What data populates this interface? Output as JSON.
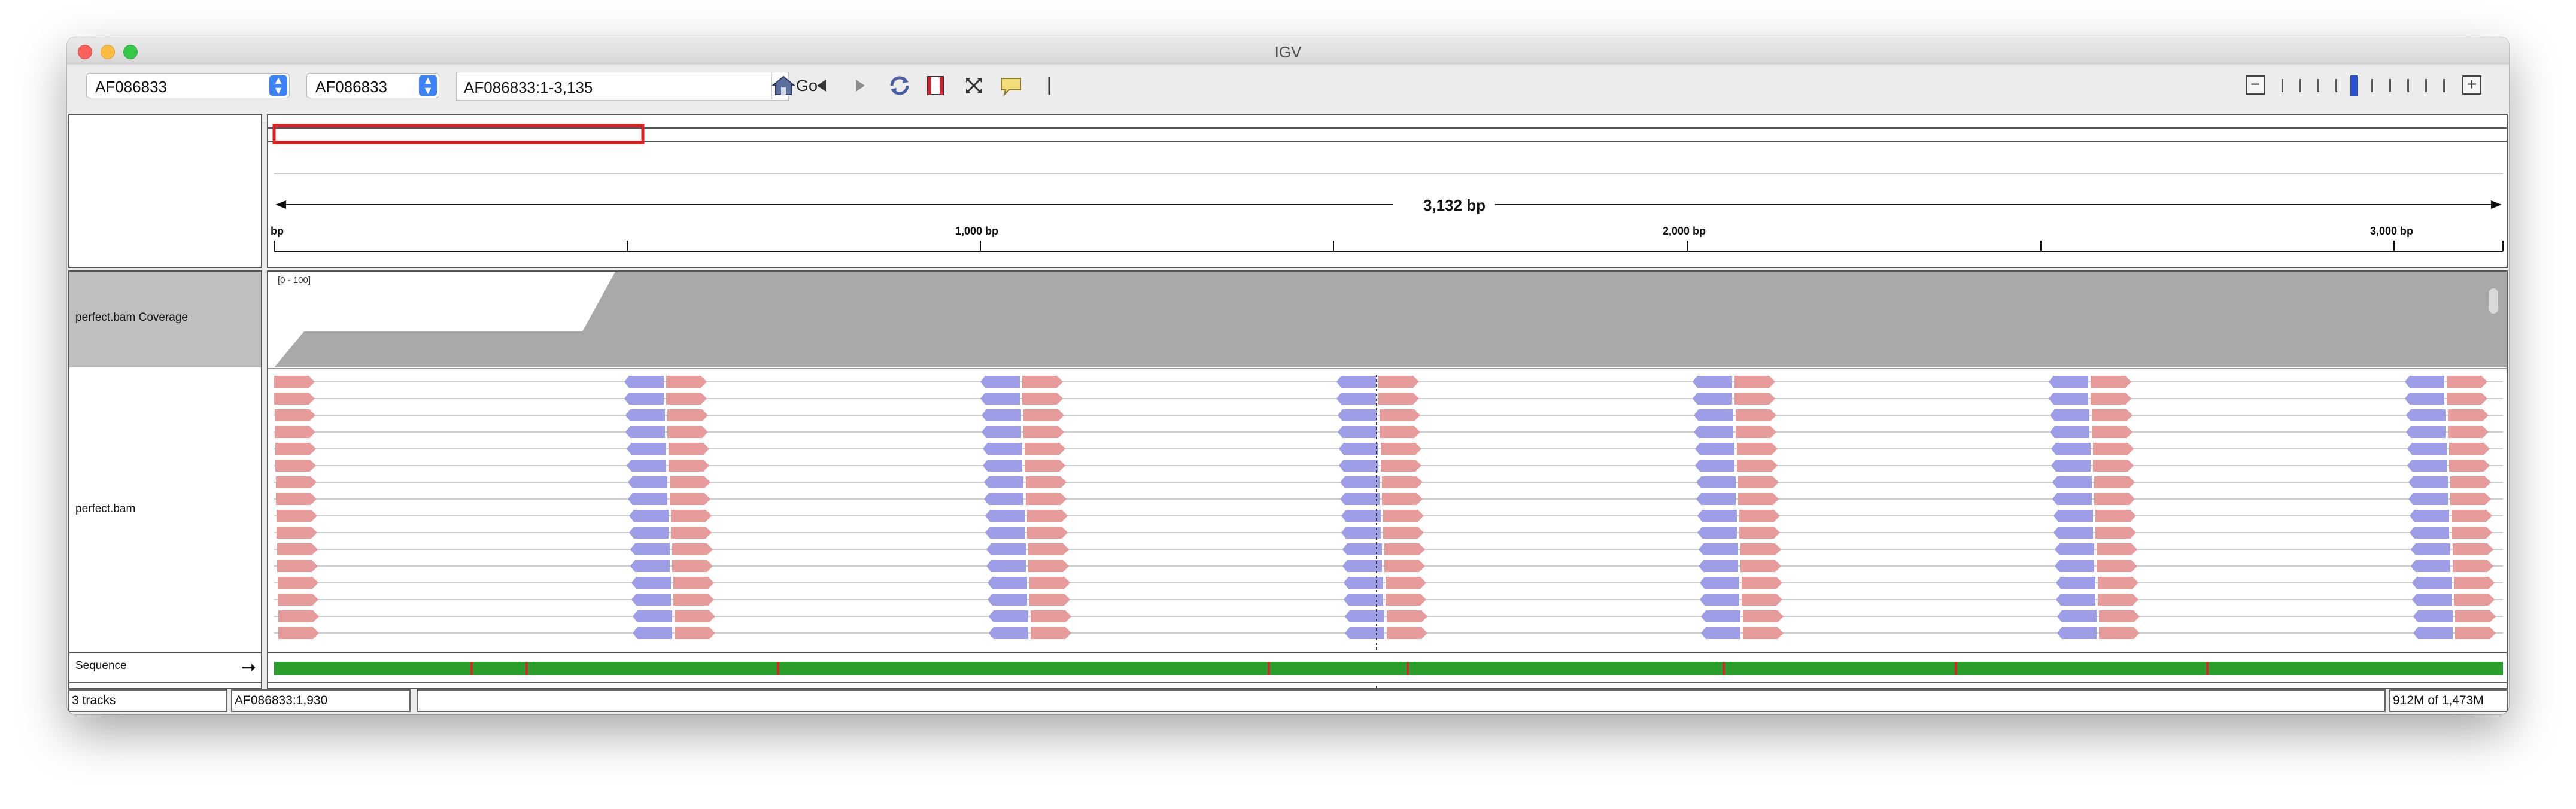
{
  "window": {
    "title": "IGV"
  },
  "toolbar": {
    "genome": "AF086833",
    "chromosome": "AF086833",
    "locus": "AF086833:1-3,135",
    "go_label": "Go",
    "zoom_level": 5,
    "zoom_levels": 11
  },
  "ruler": {
    "span_label": "3,132 bp",
    "tick_labels": [
      "bp",
      "1,000 bp",
      "2,000 bp",
      "3,000 bp"
    ]
  },
  "tracks": {
    "coverage_name": "perfect.bam Coverage",
    "coverage_range": "[0 - 100]",
    "alignment_name": "perfect.bam",
    "sequence_name": "Sequence"
  },
  "status": {
    "tracks": "3 tracks",
    "position": "AF086833:1,930",
    "memory": "912M of 1,473M"
  },
  "colors": {
    "forward_read": "#e79b9b",
    "reverse_read": "#9d9de8",
    "coverage": "#a9a9a9",
    "viewport_box": "#e41e1e"
  }
}
